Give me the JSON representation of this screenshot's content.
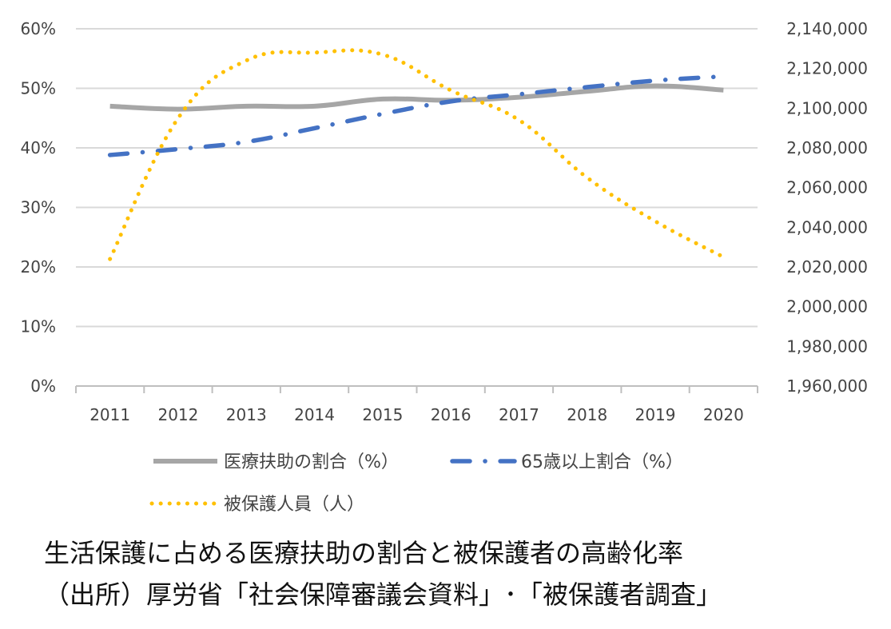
{
  "chart_data": {
    "type": "line",
    "categories": [
      "2011",
      "2012",
      "2013",
      "2014",
      "2015",
      "2016",
      "2017",
      "2018",
      "2019",
      "2020"
    ],
    "y_left": {
      "ticks": [
        "0%",
        "10%",
        "20%",
        "30%",
        "40%",
        "50%",
        "60%"
      ],
      "ylim": [
        0,
        60
      ]
    },
    "y_right": {
      "ticks": [
        "1,960,000",
        "1,980,000",
        "2,000,000",
        "2,020,000",
        "2,040,000",
        "2,060,000",
        "2,080,000",
        "2,100,000",
        "2,120,000",
        "2,140,000"
      ],
      "ylim": [
        1960000,
        2140000
      ]
    },
    "grid": true,
    "legend_position": "bottom",
    "series": [
      {
        "name": "医療扶助の割合（%）",
        "axis": "left",
        "style": "solid",
        "color": "#a6a6a6",
        "values": [
          47.0,
          46.5,
          47.0,
          47.0,
          48.2,
          48.0,
          48.5,
          49.5,
          50.4,
          49.7
        ]
      },
      {
        "name": "65歳以上割合（%）",
        "axis": "left",
        "style": "dashdot",
        "color": "#4472c4",
        "values": [
          38.8,
          39.8,
          41.0,
          43.3,
          45.7,
          47.8,
          49.0,
          50.2,
          51.3,
          52.0
        ]
      },
      {
        "name": "被保護人員（人）",
        "axis": "right",
        "style": "dotted",
        "color": "#ffc000",
        "values": [
          2024000,
          2095000,
          2124000,
          2128000,
          2127000,
          2109000,
          2094000,
          2065000,
          2043000,
          2025000
        ]
      }
    ]
  },
  "caption": {
    "title": "生活保護に占める医療扶助の割合と被保護者の高齢化率",
    "source": "（出所）厚労省「社会保障審議会資料」･「被保護者調査」"
  }
}
